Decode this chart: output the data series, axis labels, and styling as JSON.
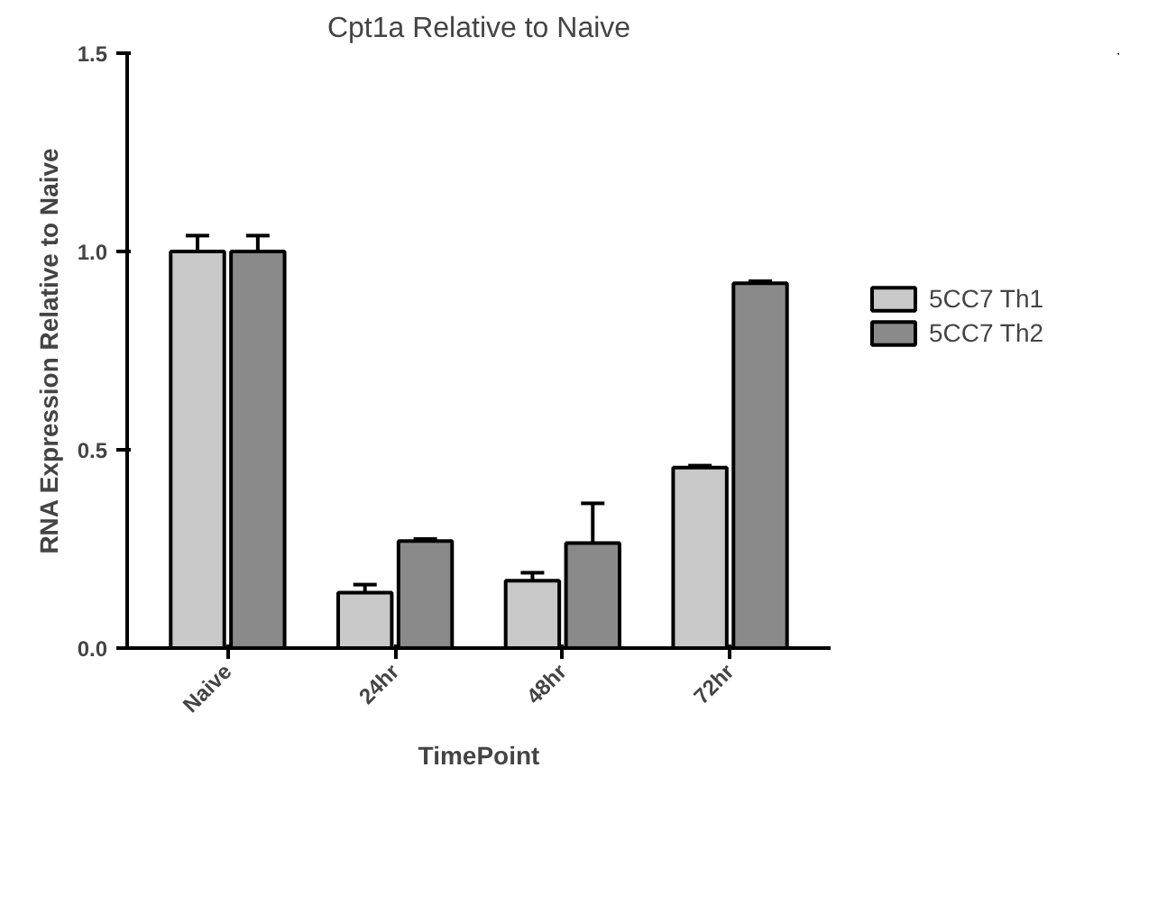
{
  "chart_data": {
    "type": "bar",
    "title": "Cpt1a Relative to Naive",
    "xlabel": "TimePoint",
    "ylabel": "RNA Expression Relative to Naive",
    "categories": [
      "Naive",
      "24hr",
      "48hr",
      "72hr"
    ],
    "series": [
      {
        "name": "5CC7 Th1",
        "color": "#c8c8c8",
        "values": [
          1.0,
          0.14,
          0.17,
          0.455
        ],
        "errors": [
          [
            1.0,
            1.04
          ],
          [
            0.14,
            0.16
          ],
          [
            0.17,
            0.19
          ],
          [
            0.455,
            0.46
          ]
        ]
      },
      {
        "name": "5CC7 Th2",
        "color": "#8a8a8a",
        "values": [
          1.0,
          0.27,
          0.265,
          0.92
        ],
        "errors": [
          [
            1.0,
            1.04
          ],
          [
            0.27,
            0.275
          ],
          [
            0.265,
            0.365
          ],
          [
            0.92,
            0.925
          ]
        ]
      }
    ],
    "ylim": [
      0,
      1.5
    ],
    "yticks": [
      {
        "value": 0,
        "label": "0.0"
      },
      {
        "value": 0.5,
        "label": "0.5"
      },
      {
        "value": 1,
        "label": "1.0"
      },
      {
        "value": 1.5,
        "label": "1.5"
      }
    ],
    "grid": false,
    "legend": "right"
  }
}
